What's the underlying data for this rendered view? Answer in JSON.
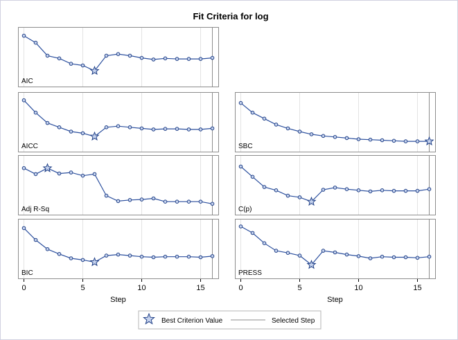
{
  "chart_data": {
    "type": "line",
    "title": "Fit Criteria for log",
    "xlabel": "Step",
    "x": [
      0,
      1,
      2,
      3,
      4,
      5,
      6,
      7,
      8,
      9,
      10,
      11,
      12,
      13,
      14,
      15,
      16
    ],
    "xticks": [
      "0",
      "5",
      "10",
      "15"
    ],
    "xlim": [
      -0.5,
      16.5
    ],
    "selected_step": 16,
    "grid": true,
    "legend_position": "bottom",
    "legend": {
      "best": "Best Criterion Value",
      "selected": "Selected Step"
    },
    "series": [
      {
        "name": "AIC",
        "best_step": 6,
        "values": [
          0.89,
          0.76,
          0.52,
          0.47,
          0.37,
          0.34,
          0.24,
          0.52,
          0.55,
          0.52,
          0.48,
          0.45,
          0.47,
          0.46,
          0.46,
          0.46,
          0.48
        ]
      },
      {
        "name": "AICC",
        "best_step": 6,
        "values": [
          0.9,
          0.67,
          0.48,
          0.4,
          0.32,
          0.29,
          0.23,
          0.4,
          0.42,
          0.4,
          0.38,
          0.36,
          0.37,
          0.37,
          0.36,
          0.36,
          0.38
        ]
      },
      {
        "name": "SBC",
        "best_step": 16,
        "values": [
          0.85,
          0.67,
          0.56,
          0.45,
          0.38,
          0.32,
          0.27,
          0.24,
          0.22,
          0.2,
          0.18,
          0.17,
          0.16,
          0.15,
          0.14,
          0.14,
          0.14
        ]
      },
      {
        "name": "Adj R-Sq",
        "best_step": 2,
        "values": [
          0.81,
          0.7,
          0.81,
          0.71,
          0.73,
          0.67,
          0.7,
          0.3,
          0.2,
          0.22,
          0.23,
          0.25,
          0.19,
          0.19,
          0.19,
          0.19,
          0.15
        ]
      },
      {
        "name": "C(p)",
        "best_step": 6,
        "values": [
          0.84,
          0.65,
          0.46,
          0.4,
          0.3,
          0.27,
          0.19,
          0.41,
          0.45,
          0.42,
          0.4,
          0.38,
          0.4,
          0.39,
          0.39,
          0.39,
          0.42
        ]
      },
      {
        "name": "BIC",
        "best_step": 6,
        "values": [
          0.88,
          0.66,
          0.49,
          0.4,
          0.32,
          0.29,
          0.25,
          0.37,
          0.39,
          0.37,
          0.35,
          0.34,
          0.35,
          0.35,
          0.35,
          0.34,
          0.36
        ]
      },
      {
        "name": "PRESS",
        "best_step": 6,
        "values": [
          0.91,
          0.79,
          0.6,
          0.46,
          0.42,
          0.37,
          0.2,
          0.46,
          0.43,
          0.39,
          0.36,
          0.32,
          0.35,
          0.34,
          0.34,
          0.33,
          0.35
        ]
      }
    ]
  }
}
